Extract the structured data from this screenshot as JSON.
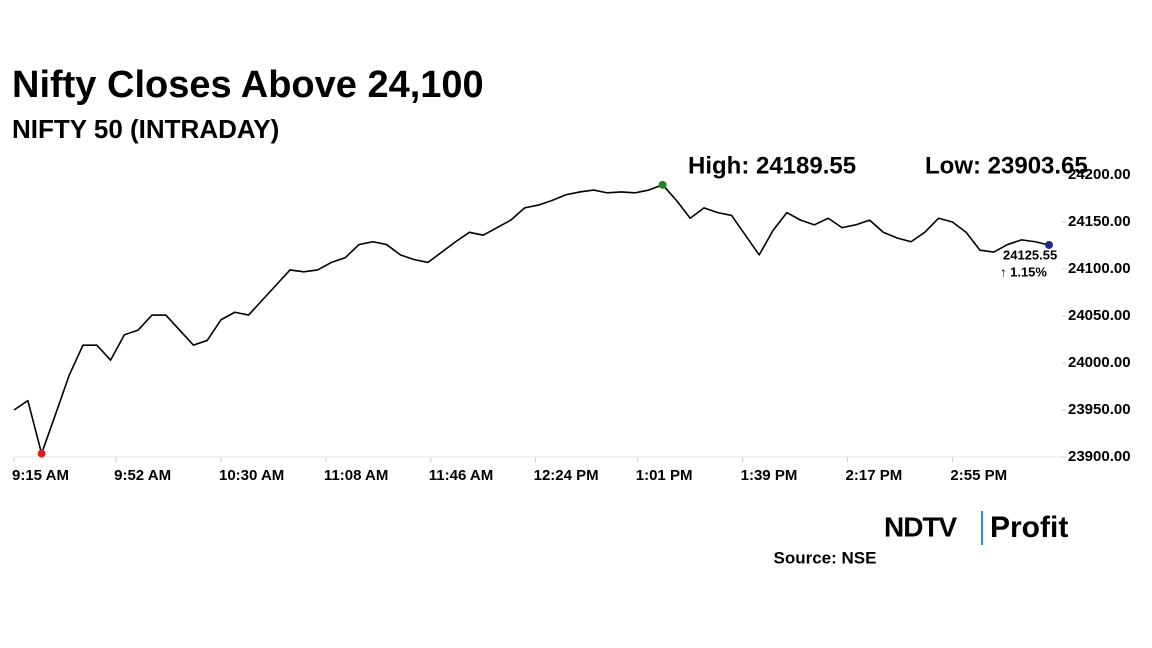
{
  "chart_data": {
    "type": "line",
    "title": "Nifty Closes Above 24,100",
    "subtitle": "NIFTY 50 (INTRADAY)",
    "high_label": "High: 24189.55",
    "low_label": "Low: 23903.65",
    "last_label": "24125.55",
    "change_label": "↑ 1.15%",
    "source": "Source: NSE",
    "logo": {
      "left": "NDTV",
      "right": "Profit"
    },
    "x": [
      "9:15 AM",
      "9:20 AM",
      "9:25 AM",
      "9:30 AM",
      "9:35 AM",
      "9:40 AM",
      "9:45 AM",
      "9:50 AM",
      "9:55 AM",
      "10:00 AM",
      "10:05 AM",
      "10:10 AM",
      "10:15 AM",
      "10:20 AM",
      "10:25 AM",
      "10:30 AM",
      "10:35 AM",
      "10:40 AM",
      "10:45 AM",
      "10:50 AM",
      "10:55 AM",
      "11:00 AM",
      "11:05 AM",
      "11:10 AM",
      "11:15 AM",
      "11:20 AM",
      "11:25 AM",
      "11:30 AM",
      "11:35 AM",
      "11:40 AM",
      "11:45 AM",
      "11:50 AM",
      "11:55 AM",
      "12:00 PM",
      "12:05 PM",
      "12:10 PM",
      "12:15 PM",
      "12:20 PM",
      "12:25 PM",
      "12:30 PM",
      "12:35 PM",
      "12:40 PM",
      "12:45 PM",
      "12:50 PM",
      "12:55 PM",
      "1:00 PM",
      "1:05 PM",
      "1:10 PM",
      "1:15 PM",
      "1:20 PM",
      "1:25 PM",
      "1:30 PM",
      "1:35 PM",
      "1:40 PM",
      "1:45 PM",
      "1:50 PM",
      "1:55 PM",
      "2:00 PM",
      "2:05 PM",
      "2:10 PM",
      "2:15 PM",
      "2:20 PM",
      "2:25 PM",
      "2:30 PM",
      "2:35 PM",
      "2:40 PM",
      "2:45 PM",
      "2:50 PM",
      "2:55 PM",
      "3:00 PM",
      "3:05 PM",
      "3:10 PM",
      "3:15 PM",
      "3:20 PM",
      "3:25 PM",
      "3:30 PM"
    ],
    "series": [
      {
        "name": "NIFTY 50",
        "color": "#000000",
        "values": [
          23950,
          23960,
          23903.65,
          23945,
          23987,
          24019,
          24019,
          24003,
          24030,
          24035,
          24051,
          24051,
          24035,
          24019,
          24024,
          24046,
          24054,
          24051,
          24067,
          24083,
          24099,
          24097,
          24099,
          24107,
          24112,
          24126,
          24129,
          24126,
          24115,
          24110,
          24107,
          24118,
          24129,
          24139,
          24136,
          24144,
          24152,
          24165,
          24168,
          24173,
          24179,
          24182,
          24184,
          24181,
          24182,
          24181,
          24184,
          24189.55,
          24173,
          24154,
          24165,
          24160,
          24157,
          24136,
          24115,
          24141,
          24160,
          24152,
          24147,
          24154,
          24144,
          24147,
          24152,
          24139,
          24133,
          24129,
          24139,
          24154,
          24150,
          24139,
          24120,
          24118,
          24126,
          24131,
          24129,
          24125.55
        ]
      }
    ],
    "markers": {
      "high": {
        "index": 47,
        "color": "#1a8a1a"
      },
      "low": {
        "index": 2,
        "color": "#e02020"
      },
      "last": {
        "index": 75,
        "color": "#1f2a8a"
      }
    },
    "change_color": "#1a8a1a",
    "xlim": [
      "9:15 AM",
      "3:30 PM"
    ],
    "xticks": [
      "9:15 AM",
      "9:52 AM",
      "10:30 AM",
      "11:08 AM",
      "11:46 AM",
      "12:24 PM",
      "1:01 PM",
      "1:39 PM",
      "2:17 PM",
      "2:55 PM"
    ],
    "ylim": [
      23900,
      24200
    ],
    "yticks": [
      {
        "value": 23900,
        "label": "23900.00"
      },
      {
        "value": 23950,
        "label": "23950.00"
      },
      {
        "value": 24000,
        "label": "24000.00"
      },
      {
        "value": 24050,
        "label": "24050.00"
      },
      {
        "value": 24100,
        "label": "24100.00"
      },
      {
        "value": 24150,
        "label": "24150.00"
      },
      {
        "value": 24200,
        "label": "24200.00"
      }
    ],
    "grid": false
  }
}
